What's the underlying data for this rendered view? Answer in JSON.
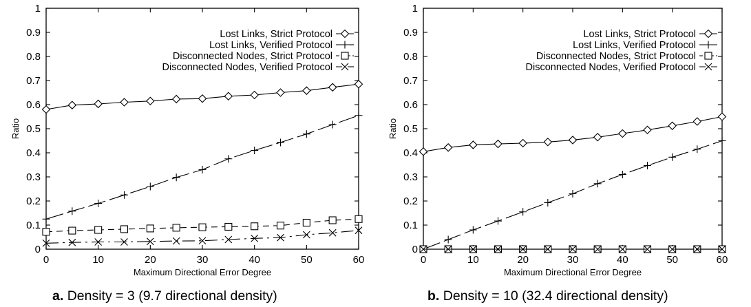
{
  "chart_data": [
    {
      "type": "line",
      "panel_label": "a.",
      "caption": "Density = 3 (9.7 directional density)",
      "xlabel": "Maximum Directional Error Degree",
      "ylabel": "Ratio",
      "xlim": [
        0,
        60
      ],
      "ylim": [
        0,
        1
      ],
      "xticks": [
        0,
        10,
        20,
        30,
        40,
        50,
        60
      ],
      "yticks": [
        0,
        0.1,
        0.2,
        0.3,
        0.4,
        0.5,
        0.6,
        0.7,
        0.8,
        0.9,
        1
      ],
      "grid": false,
      "legend_position": "top-right",
      "x": [
        0,
        5,
        10,
        15,
        20,
        25,
        30,
        35,
        40,
        45,
        50,
        55,
        60
      ],
      "series": [
        {
          "name": "Lost Links, Strict Protocol",
          "marker": "diamond",
          "dash": "solid",
          "values": [
            0.58,
            0.598,
            0.603,
            0.61,
            0.615,
            0.623,
            0.625,
            0.635,
            0.64,
            0.65,
            0.658,
            0.672,
            0.685
          ]
        },
        {
          "name": "Lost Links, Verified Protocol",
          "marker": "plus",
          "dash": "long-dash",
          "values": [
            0.125,
            0.158,
            0.19,
            0.225,
            0.26,
            0.298,
            0.33,
            0.375,
            0.41,
            0.443,
            0.478,
            0.517,
            0.555
          ]
        },
        {
          "name": "Disconnected Nodes, Strict Protocol",
          "marker": "square",
          "dash": "short-dash",
          "values": [
            0.072,
            0.077,
            0.08,
            0.083,
            0.086,
            0.089,
            0.091,
            0.093,
            0.095,
            0.098,
            0.11,
            0.12,
            0.125
          ]
        },
        {
          "name": "Disconnected Nodes, Verified Protocol",
          "marker": "x",
          "dash": "dash-dot",
          "values": [
            0.025,
            0.028,
            0.03,
            0.03,
            0.032,
            0.034,
            0.035,
            0.04,
            0.045,
            0.048,
            0.06,
            0.068,
            0.078
          ]
        }
      ]
    },
    {
      "type": "line",
      "panel_label": "b.",
      "caption": "Density = 10 (32.4 directional density)",
      "xlabel": "Maximum Directional Error Degree",
      "ylabel": "Ratio",
      "xlim": [
        0,
        60
      ],
      "ylim": [
        0,
        1
      ],
      "xticks": [
        0,
        10,
        20,
        30,
        40,
        50,
        60
      ],
      "yticks": [
        0,
        0.1,
        0.2,
        0.3,
        0.4,
        0.5,
        0.6,
        0.7,
        0.8,
        0.9,
        1
      ],
      "grid": false,
      "legend_position": "top-right",
      "x": [
        0,
        5,
        10,
        15,
        20,
        25,
        30,
        35,
        40,
        45,
        50,
        55,
        60
      ],
      "series": [
        {
          "name": "Lost Links, Strict Protocol",
          "marker": "diamond",
          "dash": "solid",
          "values": [
            0.405,
            0.422,
            0.433,
            0.437,
            0.44,
            0.445,
            0.453,
            0.465,
            0.48,
            0.495,
            0.512,
            0.53,
            0.55
          ]
        },
        {
          "name": "Lost Links, Verified Protocol",
          "marker": "plus",
          "dash": "long-dash",
          "values": [
            0.0,
            0.04,
            0.08,
            0.117,
            0.155,
            0.193,
            0.23,
            0.272,
            0.31,
            0.347,
            0.382,
            0.415,
            0.45
          ]
        },
        {
          "name": "Disconnected Nodes, Strict Protocol",
          "marker": "square",
          "dash": "short-dash",
          "values": [
            0,
            0,
            0,
            0,
            0,
            0,
            0,
            0,
            0,
            0,
            0,
            0,
            0
          ]
        },
        {
          "name": "Disconnected Nodes, Verified Protocol",
          "marker": "x",
          "dash": "dash-dot",
          "values": [
            0,
            0,
            0,
            0,
            0,
            0,
            0,
            0,
            0,
            0,
            0,
            0,
            0
          ]
        }
      ]
    }
  ]
}
